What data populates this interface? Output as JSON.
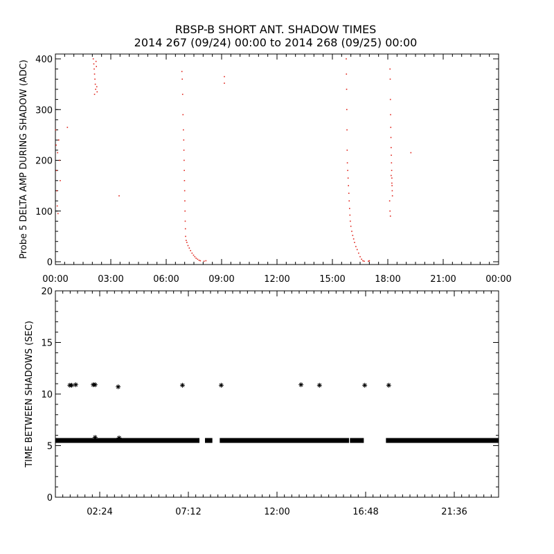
{
  "title": "RBSP-B SHORT ANT. SHADOW TIMES",
  "subtitle": "2014 267 (09/24) 00:00 to 2014 268 (09/25) 00:00",
  "chart_data": [
    {
      "type": "scatter",
      "ylabel": "Probe 5 DELTA AMP DURING SHADOW (ADC)",
      "xlabel": "",
      "xlim_hours": [
        0,
        24
      ],
      "ylim": [
        0,
        400
      ],
      "x_ticks": [
        "00:00",
        "03:00",
        "06:00",
        "09:00",
        "12:00",
        "15:00",
        "18:00",
        "21:00",
        "00:00"
      ],
      "y_ticks": [
        0,
        100,
        200,
        300,
        400
      ],
      "marker_color": "#e0241b",
      "grid": false,
      "series": [
        {
          "points": [
            [
              0.02,
              260
            ],
            [
              0.04,
              230
            ],
            [
              0.06,
              180
            ],
            [
              0.08,
              140
            ],
            [
              0.1,
              110
            ],
            [
              0.12,
              215
            ],
            [
              0.14,
              95
            ],
            [
              0.18,
              240
            ],
            [
              0.22,
              200
            ],
            [
              0.26,
              160
            ],
            [
              0.65,
              265
            ],
            [
              3.45,
              130
            ],
            [
              2.05,
              400
            ],
            [
              2.08,
              390
            ],
            [
              2.1,
              380
            ],
            [
              2.12,
              370
            ],
            [
              2.14,
              360
            ],
            [
              2.16,
              350
            ],
            [
              2.18,
              340
            ],
            [
              2.2,
              395
            ],
            [
              2.22,
              385
            ],
            [
              2.24,
              345
            ],
            [
              2.26,
              335
            ],
            [
              2.12,
              330
            ],
            [
              6.85,
              375
            ],
            [
              6.87,
              360
            ],
            [
              6.89,
              330
            ],
            [
              6.91,
              290
            ],
            [
              6.93,
              260
            ],
            [
              6.95,
              240
            ],
            [
              6.96,
              220
            ],
            [
              6.97,
              200
            ],
            [
              6.98,
              180
            ],
            [
              6.99,
              160
            ],
            [
              7.0,
              140
            ],
            [
              7.01,
              120
            ],
            [
              7.02,
              100
            ],
            [
              7.03,
              80
            ],
            [
              7.04,
              65
            ],
            [
              7.05,
              50
            ],
            [
              7.08,
              42
            ],
            [
              7.12,
              38
            ],
            [
              7.18,
              32
            ],
            [
              7.25,
              27
            ],
            [
              7.32,
              22
            ],
            [
              7.4,
              17
            ],
            [
              7.48,
              13
            ],
            [
              7.55,
              10
            ],
            [
              7.62,
              7
            ],
            [
              7.7,
              5
            ],
            [
              7.78,
              3
            ],
            [
              7.85,
              2
            ],
            [
              8.05,
              1
            ],
            [
              8.15,
              2
            ],
            [
              9.15,
              365
            ],
            [
              9.15,
              352
            ],
            [
              15.75,
              400
            ],
            [
              15.76,
              370
            ],
            [
              15.77,
              340
            ],
            [
              15.78,
              300
            ],
            [
              15.79,
              260
            ],
            [
              15.8,
              220
            ],
            [
              15.81,
              195
            ],
            [
              15.83,
              180
            ],
            [
              15.85,
              165
            ],
            [
              15.87,
              150
            ],
            [
              15.89,
              135
            ],
            [
              15.91,
              120
            ],
            [
              15.93,
              105
            ],
            [
              15.95,
              92
            ],
            [
              15.97,
              80
            ],
            [
              16.0,
              70
            ],
            [
              16.05,
              60
            ],
            [
              16.1,
              52
            ],
            [
              16.15,
              45
            ],
            [
              16.2,
              38
            ],
            [
              16.27,
              30
            ],
            [
              16.34,
              24
            ],
            [
              16.42,
              17
            ],
            [
              16.5,
              10
            ],
            [
              16.58,
              5
            ],
            [
              16.65,
              2
            ],
            [
              16.72,
              1
            ],
            [
              16.95,
              1
            ],
            [
              17.0,
              2
            ],
            [
              18.12,
              380
            ],
            [
              18.13,
              360
            ],
            [
              18.14,
              320
            ],
            [
              18.15,
              290
            ],
            [
              18.16,
              265
            ],
            [
              18.17,
              245
            ],
            [
              18.18,
              225
            ],
            [
              18.19,
              210
            ],
            [
              18.2,
              195
            ],
            [
              18.21,
              180
            ],
            [
              18.22,
              165
            ],
            [
              18.23,
              150
            ],
            [
              18.24,
              140
            ],
            [
              18.25,
              130
            ],
            [
              18.1,
              120
            ],
            [
              18.12,
              100
            ],
            [
              18.14,
              90
            ],
            [
              18.18,
              170
            ],
            [
              18.22,
              155
            ],
            [
              19.25,
              215
            ]
          ]
        }
      ]
    },
    {
      "type": "scatter",
      "ylabel": "TIME BETWEEN SHADOWS (SEC)",
      "xlabel": "",
      "xlim_hours": [
        0,
        24
      ],
      "ylim": [
        0,
        20
      ],
      "x_ticks": [
        "02:24",
        "07:12",
        "12:00",
        "16:48",
        "21:36"
      ],
      "y_ticks": [
        0,
        5,
        10,
        15,
        20
      ],
      "marker": "asterisk",
      "marker_color": "#000000",
      "grid": false,
      "series": [
        {
          "baseline_value": 5.5,
          "baseline_ranges_hours": [
            [
              0,
              7.8
            ],
            [
              8.1,
              8.5
            ],
            [
              8.9,
              15.9
            ],
            [
              15.95,
              16.7
            ],
            [
              17.9,
              24
            ]
          ],
          "points": [
            [
              0.78,
              10.85
            ],
            [
              0.88,
              10.85
            ],
            [
              1.1,
              10.9
            ],
            [
              2.05,
              10.9
            ],
            [
              2.15,
              10.9
            ],
            [
              3.4,
              10.7
            ],
            [
              6.88,
              10.85
            ],
            [
              8.98,
              10.85
            ],
            [
              13.3,
              10.9
            ],
            [
              14.3,
              10.85
            ],
            [
              16.75,
              10.85
            ],
            [
              18.05,
              10.85
            ],
            [
              2.15,
              5.8
            ],
            [
              3.45,
              5.75
            ]
          ]
        }
      ]
    }
  ]
}
